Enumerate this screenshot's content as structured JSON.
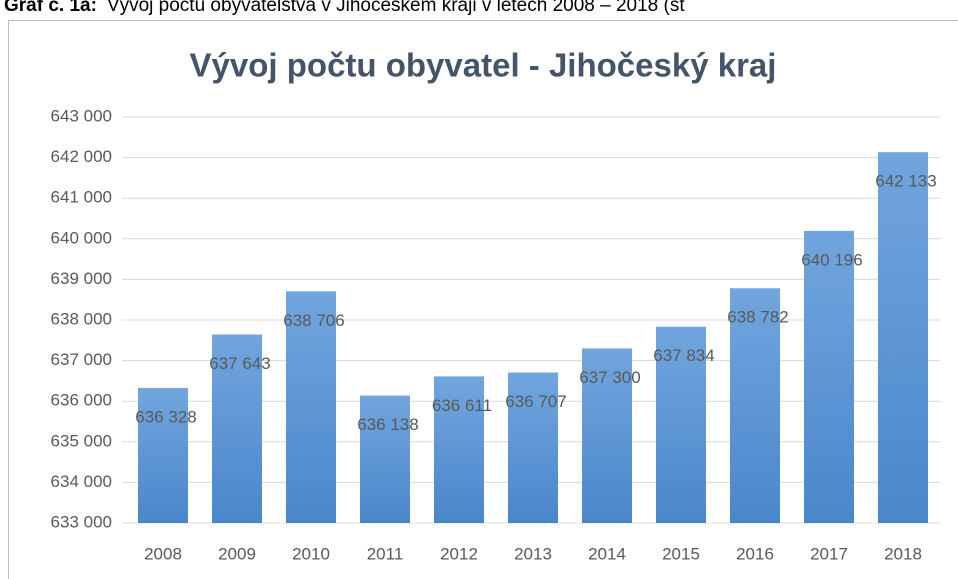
{
  "caption": {
    "label": "Graf č. 1a:",
    "text": "Vývoj počtu obyvatelstva v Jihočeském kraji v letech 2008 – 2018 (st"
  },
  "chart_data": {
    "type": "bar",
    "title": "Vývoj počtu obyvatel - Jihočeský kraj",
    "categories": [
      "2008",
      "2009",
      "2010",
      "2011",
      "2012",
      "2013",
      "2014",
      "2015",
      "2016",
      "2017",
      "2018"
    ],
    "values": [
      636328,
      637643,
      638706,
      636138,
      636611,
      636707,
      637300,
      637834,
      638782,
      640196,
      642133
    ],
    "value_labels": [
      "636 328",
      "637 643",
      "638 706",
      "636 138",
      "636 611",
      "636 707",
      "637 300",
      "637 834",
      "638 782",
      "640 196",
      "642 133"
    ],
    "color": "#5b9bd5",
    "ylim": [
      633000,
      643000
    ],
    "yticks": [
      {
        "value": 633000,
        "label": "633 000"
      },
      {
        "value": 634000,
        "label": "634 000"
      },
      {
        "value": 635000,
        "label": "635 000"
      },
      {
        "value": 636000,
        "label": "636 000"
      },
      {
        "value": 637000,
        "label": "637 000"
      },
      {
        "value": 638000,
        "label": "638 000"
      },
      {
        "value": 639000,
        "label": "639 000"
      },
      {
        "value": 640000,
        "label": "640 000"
      },
      {
        "value": 641000,
        "label": "641 000"
      },
      {
        "value": 642000,
        "label": "642 000"
      },
      {
        "value": 643000,
        "label": "643 000"
      }
    ],
    "grid": true
  }
}
